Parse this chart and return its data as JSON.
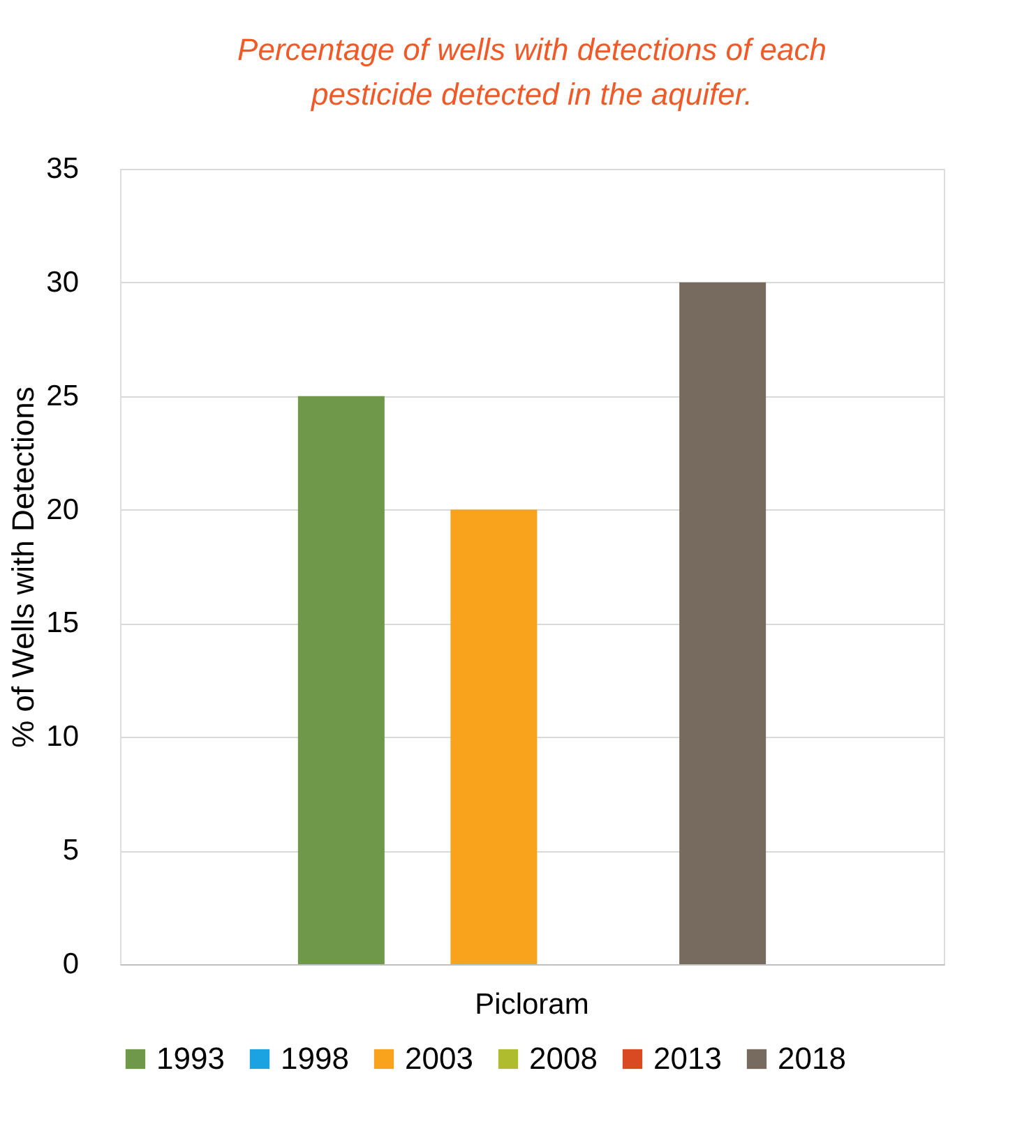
{
  "chart_data": {
    "type": "bar",
    "title": "Percentage of wells with detections of each pesticide detected in the aquifer.",
    "ylabel": "% of Wells with Detections",
    "categories": [
      "Picloram"
    ],
    "series": [
      {
        "name": "1993",
        "color": "#70984a",
        "values": [
          25
        ]
      },
      {
        "name": "1998",
        "color": "#1aa3e0",
        "values": [
          null
        ]
      },
      {
        "name": "2003",
        "color": "#f9a21c",
        "values": [
          20
        ]
      },
      {
        "name": "2008",
        "color": "#aebc2d",
        "values": [
          null
        ]
      },
      {
        "name": "2013",
        "color": "#da4a22",
        "values": [
          null
        ]
      },
      {
        "name": "2018",
        "color": "#776b60",
        "values": [
          30
        ]
      }
    ],
    "ylim": [
      0,
      35
    ],
    "yticks": [
      0,
      5,
      10,
      15,
      20,
      25,
      30,
      35
    ],
    "grid": "y",
    "legend": "bottom"
  }
}
